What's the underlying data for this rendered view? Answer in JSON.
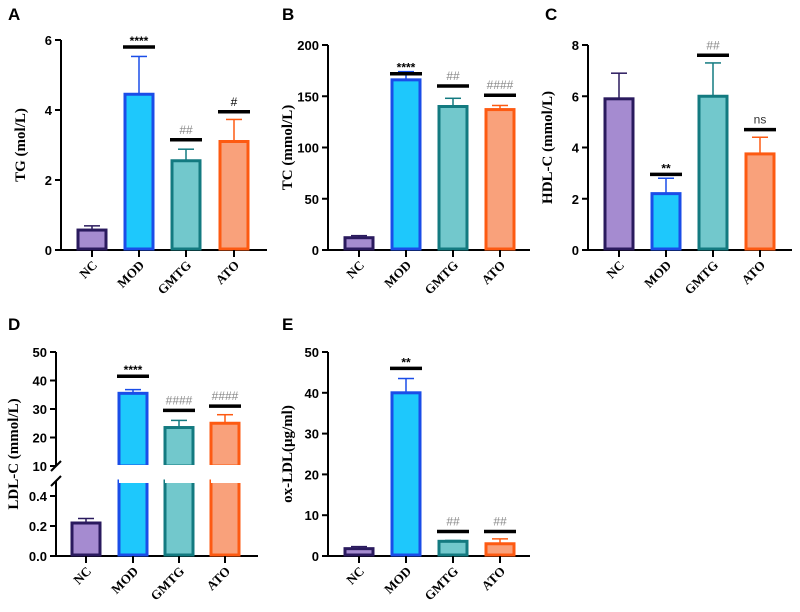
{
  "chart_data": [
    {
      "type": "bar",
      "panel": "A",
      "ylabel": "TG (mol/L)",
      "ylim": [
        0,
        6
      ],
      "ticks": [
        0,
        2,
        4,
        6
      ],
      "categories": [
        "NC",
        "MOD",
        "GMTG",
        "ATO"
      ],
      "values": [
        0.57,
        4.45,
        2.55,
        3.1
      ],
      "errors": [
        0.12,
        1.08,
        0.33,
        0.63
      ],
      "significance": [
        null,
        {
          "label": "****",
          "y": 5.8,
          "color": "#000000"
        },
        {
          "label": "##",
          "y": 3.15,
          "color": "#888888"
        },
        {
          "label": "#",
          "y": 3.95,
          "color": "#000000"
        }
      ]
    },
    {
      "type": "bar",
      "panel": "B",
      "ylabel": "TC (mmol/L)",
      "ylim": [
        0,
        200
      ],
      "ticks": [
        0,
        50,
        100,
        150,
        200
      ],
      "categories": [
        "NC",
        "MOD",
        "GMTG",
        "ATO"
      ],
      "values": [
        12,
        166,
        140,
        137
      ],
      "errors": [
        2,
        8,
        8,
        4
      ],
      "significance": [
        null,
        {
          "label": "****",
          "y": 172,
          "color": "#000000"
        },
        {
          "label": "##",
          "y": 160,
          "color": "#888888"
        },
        {
          "label": "####",
          "y": 151,
          "color": "#888888"
        }
      ]
    },
    {
      "type": "bar",
      "panel": "C",
      "ylabel": "HDL-C (mmol/L)",
      "ylim": [
        0,
        8
      ],
      "ticks": [
        0,
        2,
        4,
        6,
        8
      ],
      "categories": [
        "NC",
        "MOD",
        "GMTG",
        "ATO"
      ],
      "values": [
        5.9,
        2.2,
        6.0,
        3.75
      ],
      "errors": [
        1.0,
        0.6,
        1.3,
        0.65
      ],
      "significance": [
        null,
        {
          "label": "**",
          "y": 2.95,
          "color": "#000000"
        },
        {
          "label": "##",
          "y": 7.6,
          "color": "#888888"
        },
        {
          "label": "ns",
          "y": 4.7,
          "color": "#333333"
        }
      ]
    },
    {
      "type": "bar",
      "panel": "D",
      "ylabel": "LDL-C (mmol/L)",
      "ylim": [
        0,
        50
      ],
      "axis_break": [
        0.5,
        10
      ],
      "ticks": [
        0.0,
        0.2,
        0.4,
        10,
        20,
        30,
        40,
        50
      ],
      "tick_labels": [
        "0.0",
        "0.2",
        "0.4",
        "10",
        "20",
        "30",
        "40",
        "50"
      ],
      "categories": [
        "NC",
        "MOD",
        "GMTG",
        "ATO"
      ],
      "values": [
        0.22,
        35.5,
        23.5,
        25
      ],
      "errors": [
        0.03,
        1.3,
        2.5,
        3
      ],
      "significance": [
        null,
        {
          "label": "****",
          "y": 41.5,
          "color": "#000000"
        },
        {
          "label": "####",
          "y": 29.5,
          "color": "#888888"
        },
        {
          "label": "####",
          "y": 31,
          "color": "#888888"
        }
      ]
    },
    {
      "type": "bar",
      "panel": "E",
      "ylabel": "ox-LDL(μg/ml)",
      "ylim": [
        0,
        50
      ],
      "ticks": [
        0,
        10,
        20,
        30,
        40,
        50
      ],
      "categories": [
        "NC",
        "MOD",
        "GMTG",
        "ATO"
      ],
      "values": [
        1.8,
        40,
        3.6,
        3.0
      ],
      "errors": [
        0.5,
        3.5,
        0.2,
        1.2
      ],
      "significance": [
        null,
        {
          "label": "**",
          "y": 46,
          "color": "#000000"
        },
        {
          "label": "##",
          "y": 6,
          "color": "#888888"
        },
        {
          "label": "##",
          "y": 6,
          "color": "#888888"
        }
      ]
    }
  ],
  "colors": {
    "fills": [
      "#a58bd0",
      "#1ec8fc",
      "#72c8cc",
      "#f9a17b"
    ],
    "strokes": [
      "#2a1a5e",
      "#1a4de8",
      "#137a80",
      "#fd5a12"
    ]
  }
}
